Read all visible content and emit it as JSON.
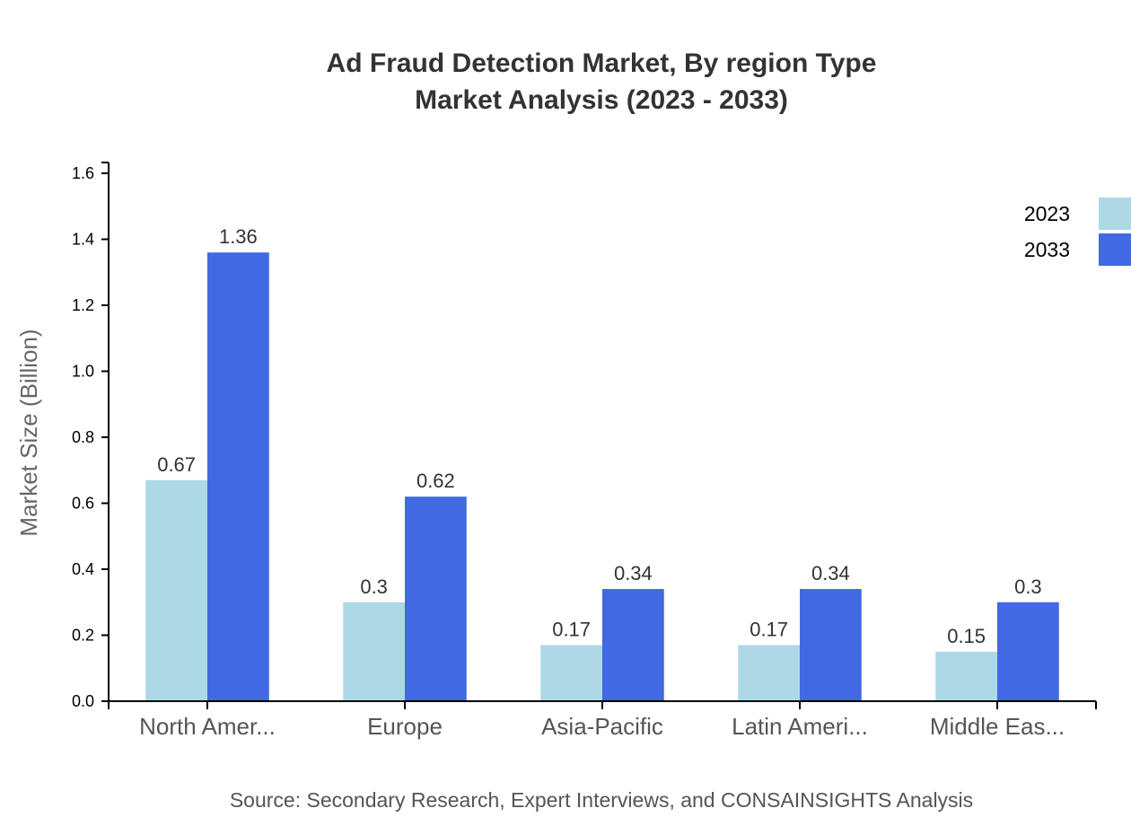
{
  "title": {
    "line1": "Ad Fraud Detection Market, By region Type",
    "line2": "Market Analysis (2023 - 2033)"
  },
  "source": "Source: Secondary Research, Expert Interviews, and CONSAINSIGHTS Analysis",
  "colors": {
    "2023": "#add8e6",
    "2033": "#4169e1"
  },
  "chart_data": {
    "type": "bar",
    "title": "Ad Fraud Detection Market, By region Type Market Analysis (2023 - 2033)",
    "xlabel": "",
    "ylabel": "Market Size (Billion)",
    "ylim": [
      0,
      1.6
    ],
    "yticks": [
      "0.0",
      "0.2",
      "0.4",
      "0.6",
      "0.8",
      "1.0",
      "1.2",
      "1.4",
      "1.6"
    ],
    "categories": [
      "North Amer...",
      "Europe",
      "Asia-Pacific",
      "Latin Ameri...",
      "Middle Eas..."
    ],
    "series": [
      {
        "name": "2023",
        "color": "#add8e6",
        "values": [
          0.67,
          0.3,
          0.17,
          0.17,
          0.15
        ]
      },
      {
        "name": "2033",
        "color": "#4169e1",
        "values": [
          1.36,
          0.62,
          0.34,
          0.34,
          0.3
        ]
      }
    ],
    "legend": {
      "position": "top-right",
      "entries": [
        "2023",
        "2033"
      ]
    },
    "grid": false
  }
}
